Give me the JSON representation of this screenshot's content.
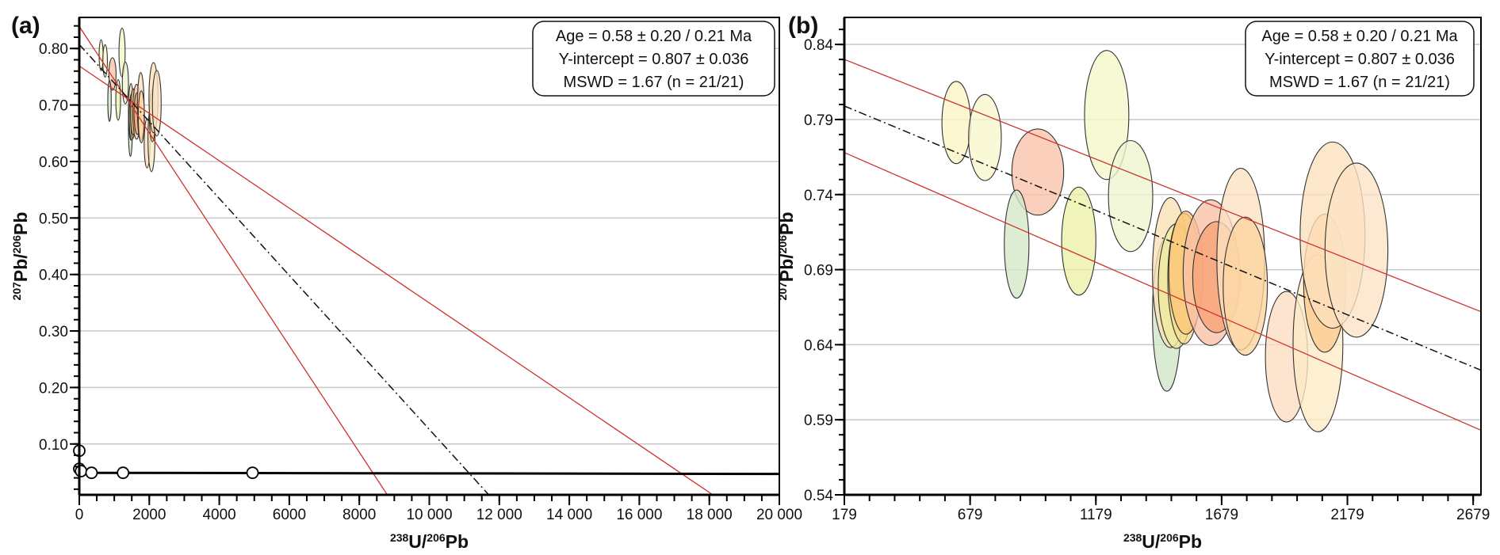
{
  "colors": {
    "grid": "#c8c8c8",
    "error_envelope": "#d0312d",
    "regression": "#111111",
    "concordia": "#000000"
  },
  "ellipses": [
    {
      "x": 624,
      "y": 0.788,
      "sx": 57,
      "sy": 0.0274,
      "fill": "#fbf3c4"
    },
    {
      "x": 738,
      "y": 0.778,
      "sx": 65,
      "sy": 0.0287,
      "fill": "#f7f6cc"
    },
    {
      "x": 948,
      "y": 0.755,
      "sx": 103,
      "sy": 0.0287,
      "fill": "#f8c3ab"
    },
    {
      "x": 864,
      "y": 0.707,
      "sx": 49,
      "sy": 0.036,
      "fill": "#d3e8c8"
    },
    {
      "x": 1222,
      "y": 0.793,
      "sx": 88,
      "sy": 0.043,
      "fill": "#f5f6c8"
    },
    {
      "x": 1111,
      "y": 0.709,
      "sx": 68,
      "sy": 0.036,
      "fill": "#ecf0a6"
    },
    {
      "x": 1317,
      "y": 0.739,
      "sx": 88,
      "sy": 0.037,
      "fill": "#eef5cf"
    },
    {
      "x": 1461,
      "y": 0.66,
      "sx": 57,
      "sy": 0.051,
      "fill": "#cfe6c8"
    },
    {
      "x": 1476,
      "y": 0.688,
      "sx": 72,
      "sy": 0.05,
      "fill": "#fbe0b5"
    },
    {
      "x": 1499,
      "y": 0.679,
      "sx": 72,
      "sy": 0.0415,
      "fill": "#eeea9c"
    },
    {
      "x": 1530,
      "y": 0.684,
      "sx": 65,
      "sy": 0.0435,
      "fill": "#f5dc8c"
    },
    {
      "x": 1537,
      "y": 0.688,
      "sx": 68,
      "sy": 0.041,
      "fill": "#fcc77a"
    },
    {
      "x": 1636,
      "y": 0.688,
      "sx": 110,
      "sy": 0.0485,
      "fill": "#f9c0a4"
    },
    {
      "x": 1659,
      "y": 0.685,
      "sx": 95,
      "sy": 0.037,
      "fill": "#f8a374"
    },
    {
      "x": 1755,
      "y": 0.697,
      "sx": 95,
      "sy": 0.0605,
      "fill": "#fde2c2"
    },
    {
      "x": 1773,
      "y": 0.679,
      "sx": 88,
      "sy": 0.046,
      "fill": "#fcd39e"
    },
    {
      "x": 1937,
      "y": 0.632,
      "sx": 84,
      "sy": 0.0435,
      "fill": "#fddcc2"
    },
    {
      "x": 2062,
      "y": 0.641,
      "sx": 99,
      "sy": 0.059,
      "fill": "#fdebc5"
    },
    {
      "x": 2089,
      "y": 0.681,
      "sx": 84,
      "sy": 0.046,
      "fill": "#fcc98e"
    },
    {
      "x": 2120,
      "y": 0.713,
      "sx": 129,
      "sy": 0.062,
      "fill": "#fde0bd"
    },
    {
      "x": 2215,
      "y": 0.703,
      "sx": 125,
      "sy": 0.058,
      "fill": "#fde3c4"
    }
  ],
  "chart_data": [
    {
      "type": "scatter",
      "panel_label": "(a)",
      "xlabel": {
        "sup1": "238",
        "main1": "U/",
        "sup2": "206",
        "main2": "Pb"
      },
      "ylabel": {
        "sup1": "207",
        "main1": "Pb/",
        "sup2": "206",
        "main2": "Pb"
      },
      "xlim": [
        0,
        20000
      ],
      "ylim": [
        0.01,
        0.855
      ],
      "x_ticks": [
        0,
        2000,
        4000,
        6000,
        8000,
        10000,
        12000,
        14000,
        16000,
        18000,
        20000
      ],
      "x_tick_labels": [
        "0",
        "2000",
        "4000",
        "6000",
        "8000",
        "10 000",
        "12 000",
        "14 000",
        "16 000",
        "18 000",
        "20 000"
      ],
      "x_minor_step": 500,
      "y_ticks": [
        0.1,
        0.2,
        0.3,
        0.4,
        0.5,
        0.6,
        0.7,
        0.8
      ],
      "y_tick_labels": [
        "0.10",
        "0.20",
        "0.30",
        "0.40",
        "0.50",
        "0.60",
        "0.70",
        "0.80"
      ],
      "y_minor_step": 0.02,
      "grid": "horizontal",
      "regression_line": {
        "x": [
          0,
          11700
        ],
        "y": [
          0.807,
          0.01
        ]
      },
      "error_envelope": [
        {
          "x": [
            0,
            8800
          ],
          "y": [
            0.839,
            0.01
          ]
        },
        {
          "x": [
            0,
            18100
          ],
          "y": [
            0.769,
            0.01
          ]
        }
      ],
      "concordia": {
        "x": [
          0,
          20000
        ],
        "y": [
          0.049,
          0.047
        ]
      },
      "concordia_markers": [
        {
          "x": 0,
          "y": 0.088
        },
        {
          "x": 0,
          "y": 0.056
        },
        {
          "x": 50,
          "y": 0.052
        },
        {
          "x": 350,
          "y": 0.049
        },
        {
          "x": 1250,
          "y": 0.049
        },
        {
          "x": 4950,
          "y": 0.049
        }
      ],
      "annotation": [
        "Age = 0.58 ± 0.20 / 0.21 Ma",
        "Y-intercept = 0.807 ± 0.036",
        "MSWD = 1.67 (n = 21/21)"
      ],
      "legend_placement": "top-right"
    },
    {
      "type": "scatter",
      "panel_label": "(b)",
      "xlabel": {
        "sup1": "238",
        "main1": "U/",
        "sup2": "206",
        "main2": "Pb"
      },
      "ylabel": {
        "sup1": "207",
        "main1": "Pb/",
        "sup2": "206",
        "main2": "Pb"
      },
      "xlim": [
        179,
        2710
      ],
      "ylim": [
        0.54,
        0.858
      ],
      "x_ticks": [
        179,
        679,
        1179,
        1679,
        2179,
        2679
      ],
      "x_tick_labels": [
        "179",
        "679",
        "1179",
        "1679",
        "2179",
        "2679"
      ],
      "x_minor_step": 100,
      "y_ticks": [
        0.54,
        0.59,
        0.64,
        0.69,
        0.74,
        0.79,
        0.84
      ],
      "y_tick_labels": [
        "0.54",
        "0.59",
        "0.64",
        "0.69",
        "0.74",
        "0.79",
        "0.84"
      ],
      "y_minor_step": 0.01,
      "grid": "horizontal",
      "regression_line": {
        "x": [
          179,
          2710
        ],
        "y": [
          0.799,
          0.623
        ]
      },
      "error_envelope": [
        {
          "x": [
            179,
            2710
          ],
          "y": [
            0.83,
            0.662
          ]
        },
        {
          "x": [
            179,
            2710
          ],
          "y": [
            0.768,
            0.583
          ]
        }
      ],
      "annotation": [
        "Age = 0.58 ± 0.20 / 0.21 Ma",
        "Y-intercept = 0.807 ± 0.036",
        "MSWD = 1.67 (n = 21/21)"
      ],
      "legend_placement": "top-right"
    }
  ]
}
